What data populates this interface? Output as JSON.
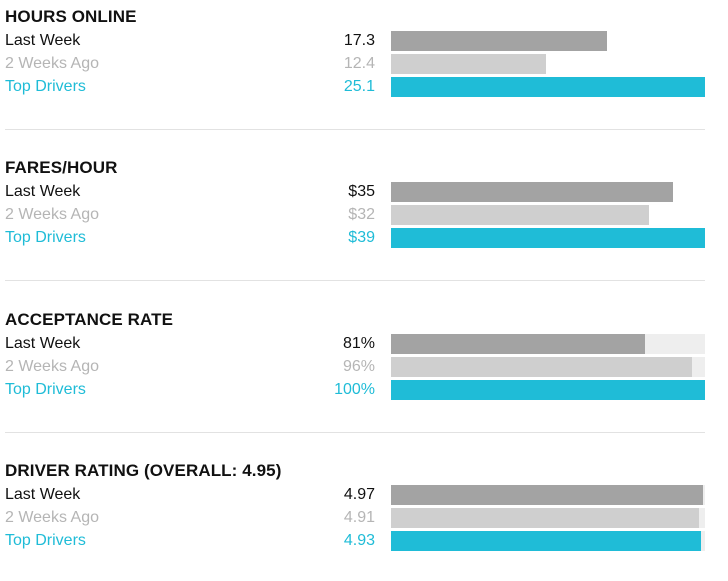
{
  "colors": {
    "last_week": "#a3a3a3",
    "two_weeks": "#cfcfcf",
    "top": "#1fbcd7",
    "track": "#eeeeee",
    "text_dark": "#111111",
    "text_light": "#b5b5b5"
  },
  "rows": {
    "last_week": "Last Week",
    "two_weeks": "2 Weeks Ago",
    "top": "Top Drivers"
  },
  "chart_data": [
    {
      "type": "bar",
      "title": "HOURS ONLINE",
      "categories": [
        "Last Week",
        "2 Weeks Ago",
        "Top Drivers"
      ],
      "values": [
        17.3,
        12.4,
        25.1
      ],
      "labels": [
        "17.3",
        "12.4",
        "25.1"
      ],
      "max": 25.1,
      "track": false
    },
    {
      "type": "bar",
      "title": "FARES/HOUR",
      "categories": [
        "Last Week",
        "2 Weeks Ago",
        "Top Drivers"
      ],
      "values": [
        35,
        32,
        39
      ],
      "labels": [
        "$35",
        "$32",
        "$39"
      ],
      "max": 39,
      "track": false
    },
    {
      "type": "bar",
      "title": "ACCEPTANCE RATE",
      "categories": [
        "Last Week",
        "2 Weeks Ago",
        "Top Drivers"
      ],
      "values": [
        81,
        96,
        100
      ],
      "labels": [
        "81%",
        "96%",
        "100%"
      ],
      "max": 100,
      "track": true
    },
    {
      "type": "bar",
      "title": "DRIVER RATING (OVERALL: 4.95)",
      "categories": [
        "Last Week",
        "2 Weeks Ago",
        "Top Drivers"
      ],
      "values": [
        4.97,
        4.91,
        4.93
      ],
      "labels": [
        "4.97",
        "4.91",
        "4.93"
      ],
      "max": 5,
      "track": true
    }
  ]
}
